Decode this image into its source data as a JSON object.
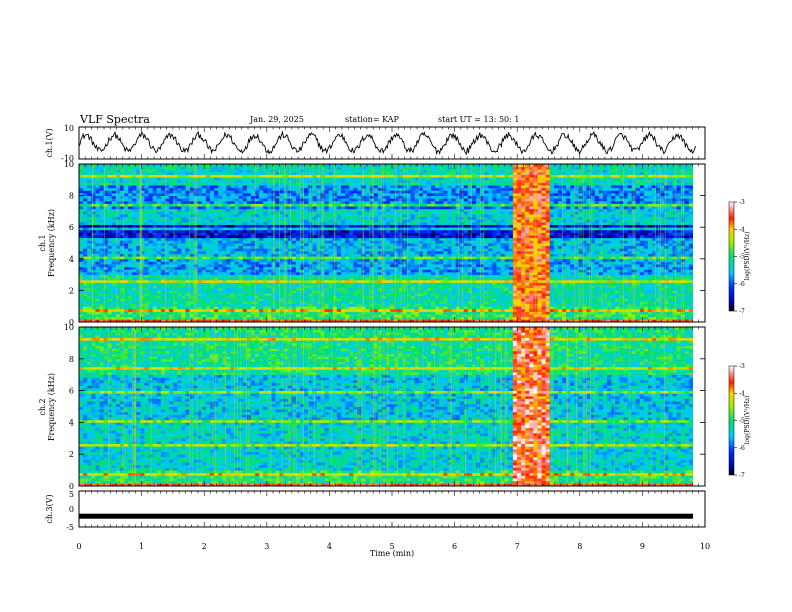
{
  "header": {
    "title": "VLF Spectra",
    "date": "Jan. 29, 2025",
    "station": "station= KAP",
    "start": "start  UT =   13: 50: 1"
  },
  "chart_data": [
    {
      "type": "line",
      "name": "ch1-waveform",
      "ylabel": "ch.1(V)",
      "ylim": [
        -10,
        10
      ],
      "yticks": [
        "10",
        "-10"
      ],
      "xlim": [
        0,
        10
      ],
      "description_values": {
        "oscillation_period_min": 0.45,
        "amplitude_v": 5
      }
    },
    {
      "type": "heatmap",
      "name": "ch1-spectrogram",
      "ylabel_line1": "ch.1",
      "ylabel_line2": "Frequency  (kHz)",
      "ylim": [
        0,
        10
      ],
      "yticks": [
        "0",
        "2",
        "4",
        "6",
        "8",
        "10"
      ],
      "xlim": [
        0,
        10
      ],
      "colorbar": {
        "label": "log(PSD)(V²/Hz)",
        "range": [
          -7,
          -3
        ],
        "ticks": [
          "-3",
          "-4",
          "-5",
          "-6",
          "-7"
        ]
      },
      "bands": [
        {
          "f0": 8.6,
          "f1": 10,
          "level": -5.3
        },
        {
          "f0": 7.2,
          "f1": 8.6,
          "level": -5.8
        },
        {
          "f0": 6.1,
          "f1": 7.1,
          "level": -5.4
        },
        {
          "f0": 5.3,
          "f1": 6.1,
          "level": -6.4
        },
        {
          "f0": 4.2,
          "f1": 5.3,
          "level": -5.6
        },
        {
          "f0": 3.0,
          "f1": 4.2,
          "level": -5.7
        },
        {
          "f0": 1.0,
          "f1": 3.0,
          "level": -5.2
        },
        {
          "f0": 0.0,
          "f1": 1.0,
          "level": -4.9
        }
      ],
      "burst": {
        "t0": 6.9,
        "t1": 7.5,
        "level": -3.7
      }
    },
    {
      "type": "heatmap",
      "name": "ch2-spectrogram",
      "ylabel_line1": "ch.2",
      "ylabel_line2": "Frequency  (kHz)",
      "ylim": [
        0,
        10
      ],
      "yticks": [
        "0",
        "2",
        "4",
        "6",
        "8",
        "10"
      ],
      "xlim": [
        0,
        10
      ],
      "colorbar": {
        "label": "log(PSD)(V²/Hz)",
        "range": [
          -7,
          -3
        ],
        "ticks": [
          "-3",
          "-4",
          "-5",
          "-6",
          "-7"
        ]
      },
      "bands": [
        {
          "f0": 7.0,
          "f1": 10,
          "level": -5.1
        },
        {
          "f0": 4.0,
          "f1": 7.0,
          "level": -5.5
        },
        {
          "f0": 1.0,
          "f1": 4.0,
          "level": -5.4
        },
        {
          "f0": 0.0,
          "f1": 1.0,
          "level": -5.0
        }
      ],
      "burst": {
        "t0": 6.9,
        "t1": 7.5,
        "level": -3.5
      }
    },
    {
      "type": "line",
      "name": "ch3-waveform",
      "ylabel": "ch.3(V)",
      "ylim": [
        -5,
        5
      ],
      "yticks": [
        "5",
        "0",
        "-5"
      ],
      "xlim": [
        0,
        10
      ],
      "xlabel": "Time  (min)",
      "xticks": [
        "0",
        "1",
        "2",
        "3",
        "4",
        "5",
        "6",
        "7",
        "8",
        "9",
        "10"
      ],
      "level_v": -2.0
    }
  ]
}
